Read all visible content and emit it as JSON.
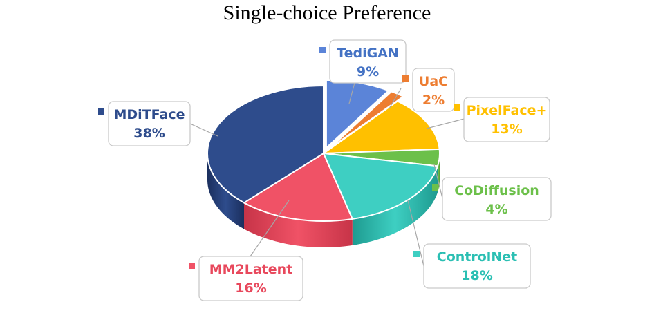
{
  "chart_data": {
    "type": "pie",
    "title": "Single-choice Preference",
    "unit": "%",
    "style": "3d-exploded",
    "slices": [
      {
        "label": "TediGAN",
        "value": 9,
        "display": "9%",
        "color": "#5B84D8",
        "side_color": "#3E62AE",
        "label_color": "#4472C4",
        "exploded": true
      },
      {
        "label": "UaC",
        "value": 2,
        "display": "2%",
        "color": "#ED7D31",
        "side_color": "#B85A1C",
        "label_color": "#ED7D31",
        "exploded": true
      },
      {
        "label": "PixelFace+",
        "value": 13,
        "display": "13%",
        "color": "#FFC000",
        "side_color": "#C99400",
        "label_color": "#FFC000",
        "exploded": false
      },
      {
        "label": "CoDiffusion",
        "value": 4,
        "display": "4%",
        "color": "#6CC04A",
        "side_color": "#4E9433",
        "label_color": "#6CC04A",
        "exploded": false
      },
      {
        "label": "ControlNet",
        "value": 18,
        "display": "18%",
        "color": "#3ECFC2",
        "side_color": "#1E9B90",
        "label_color": "#2BBFB3",
        "exploded": false
      },
      {
        "label": "MM2Latent",
        "value": 16,
        "display": "16%",
        "color": "#F05266",
        "side_color": "#C73448",
        "label_color": "#E8485C",
        "exploded": false
      },
      {
        "label": "MDiTFace",
        "value": 38,
        "display": "38%",
        "color": "#2E4C8C",
        "side_color": "#1B2F5E",
        "label_color": "#2E4C8C",
        "exploded": false
      }
    ]
  }
}
